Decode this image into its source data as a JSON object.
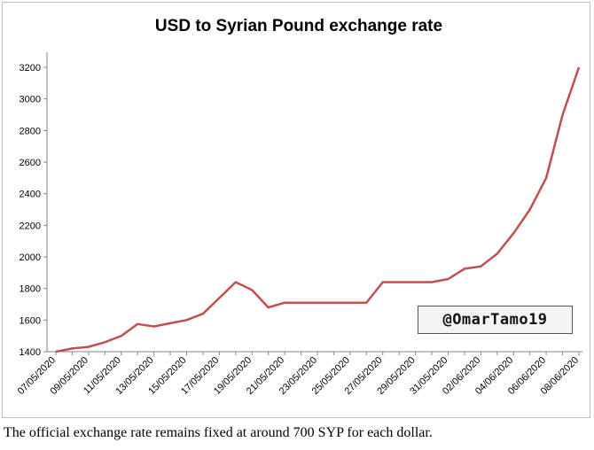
{
  "chart_data": {
    "type": "line",
    "title": "USD to Syrian Pound exchange rate",
    "xlabel": "",
    "ylabel": "",
    "ylim": [
      1400,
      3200
    ],
    "yticks": [
      1400,
      1600,
      1800,
      2000,
      2200,
      2400,
      2600,
      2800,
      3000,
      3200
    ],
    "x": [
      "07/05/2020",
      "08/05/2020",
      "09/05/2020",
      "10/05/2020",
      "11/05/2020",
      "12/05/2020",
      "13/05/2020",
      "14/05/2020",
      "15/05/2020",
      "16/05/2020",
      "17/05/2020",
      "18/05/2020",
      "19/05/2020",
      "20/05/2020",
      "21/05/2020",
      "22/05/2020",
      "23/05/2020",
      "24/05/2020",
      "25/05/2020",
      "26/05/2020",
      "27/05/2020",
      "28/05/2020",
      "29/05/2020",
      "30/05/2020",
      "31/05/2020",
      "01/06/2020",
      "02/06/2020",
      "03/06/2020",
      "04/06/2020",
      "05/06/2020",
      "06/06/2020",
      "07/06/2020",
      "08/06/2020"
    ],
    "xtick_labels": [
      "07/05/2020",
      "09/05/2020",
      "11/05/2020",
      "13/05/2020",
      "15/05/2020",
      "17/05/2020",
      "19/05/2020",
      "21/05/2020",
      "23/05/2020",
      "25/05/2020",
      "27/05/2020",
      "29/05/2020",
      "31/05/2020",
      "02/06/2020",
      "04/06/2020",
      "06/06/2020",
      "08/06/2020"
    ],
    "series": [
      {
        "values": [
          1400,
          1420,
          1430,
          1460,
          1500,
          1575,
          1560,
          1580,
          1600,
          1640,
          1740,
          1840,
          1790,
          1680,
          1710,
          1710,
          1710,
          1710,
          1710,
          1710,
          1840,
          1840,
          1840,
          1840,
          1860,
          1925,
          1940,
          2020,
          2150,
          2300,
          2500,
          2900,
          3200
        ],
        "color": "#c0504d"
      }
    ],
    "grid": false,
    "legend": "none"
  },
  "watermark": "@OmarTamo19",
  "caption": "The official exchange rate remains fixed at around 700 SYP for each dollar."
}
